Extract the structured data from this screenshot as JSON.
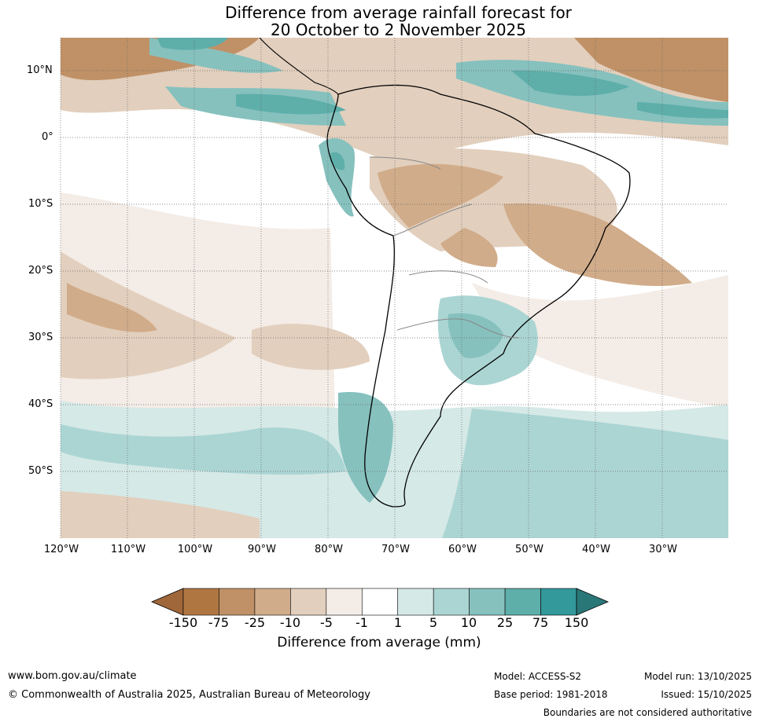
{
  "title": {
    "line1": "Difference from average rainfall forecast for",
    "line2": "20 October to 2 November 2025"
  },
  "map": {
    "lat_labels": [
      "10°N",
      "0°",
      "10°S",
      "20°S",
      "30°S",
      "40°S",
      "50°S"
    ],
    "lon_labels": [
      "120°W",
      "110°W",
      "100°W",
      "90°W",
      "80°W",
      "70°W",
      "60°W",
      "50°W",
      "40°W",
      "30°W"
    ]
  },
  "colorbar": {
    "title": "Difference from average (mm)",
    "ticks": [
      "-150",
      "-75",
      "-25",
      "-10",
      "-5",
      "-1",
      "1",
      "5",
      "10",
      "25",
      "75",
      "150"
    ],
    "colors": [
      "#a0673a",
      "#b07642",
      "#c09166",
      "#d1ac8a",
      "#e2cfbd",
      "#f4ece6",
      "#ffffff",
      "#d5e9e7",
      "#abd5d3",
      "#86c1be",
      "#5eaeaa",
      "#33999a",
      "#2a7778"
    ]
  },
  "footer": {
    "website": "www.bom.gov.au/climate",
    "copyright": "© Commonwealth of Australia 2025, Australian Bureau of Meteorology",
    "model": "Model: ACCESS-S2",
    "base_period": "Base period: 1981-2018",
    "model_run": "Model run: 13/10/2025",
    "issued": "Issued: 15/10/2025",
    "disclaimer": "Boundaries are not considered authoritative"
  }
}
